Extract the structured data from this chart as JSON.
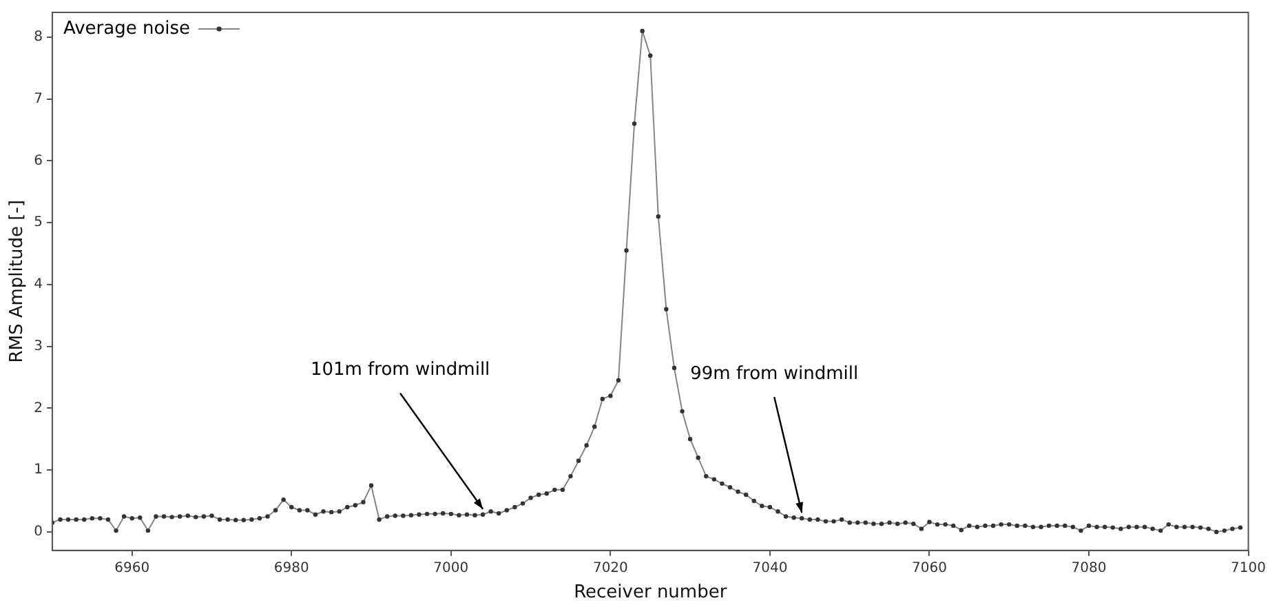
{
  "chart_data": {
    "type": "line",
    "xlabel": "Receiver number",
    "ylabel": "RMS Amplitude [-]",
    "x": [
      6950,
      6951,
      6952,
      6953,
      6954,
      6955,
      6956,
      6957,
      6958,
      6959,
      6960,
      6961,
      6962,
      6963,
      6964,
      6965,
      6966,
      6967,
      6968,
      6969,
      6970,
      6971,
      6972,
      6973,
      6974,
      6975,
      6976,
      6977,
      6978,
      6979,
      6980,
      6981,
      6982,
      6983,
      6984,
      6985,
      6986,
      6987,
      6988,
      6989,
      6990,
      6991,
      6992,
      6993,
      6994,
      6995,
      6996,
      6997,
      6998,
      6999,
      7000,
      7001,
      7002,
      7003,
      7004,
      7005,
      7006,
      7007,
      7008,
      7009,
      7010,
      7011,
      7012,
      7013,
      7014,
      7015,
      7016,
      7017,
      7018,
      7019,
      7020,
      7021,
      7022,
      7023,
      7024,
      7025,
      7026,
      7027,
      7028,
      7029,
      7030,
      7031,
      7032,
      7033,
      7034,
      7035,
      7036,
      7037,
      7038,
      7039,
      7040,
      7041,
      7042,
      7043,
      7044,
      7045,
      7046,
      7047,
      7048,
      7049,
      7050,
      7051,
      7052,
      7053,
      7054,
      7055,
      7056,
      7057,
      7058,
      7059,
      7060,
      7061,
      7062,
      7063,
      7064,
      7065,
      7066,
      7067,
      7068,
      7069,
      7070,
      7071,
      7072,
      7073,
      7074,
      7075,
      7076,
      7077,
      7078,
      7079,
      7080,
      7081,
      7082,
      7083,
      7084,
      7085,
      7086,
      7087,
      7088,
      7089,
      7090,
      7091,
      7092,
      7093,
      7094,
      7095,
      7096,
      7097,
      7098,
      7099
    ],
    "series": [
      {
        "name": "Average noise",
        "color": "#333333",
        "values": [
          0.15,
          0.2,
          0.2,
          0.2,
          0.2,
          0.22,
          0.22,
          0.2,
          0.02,
          0.25,
          0.22,
          0.23,
          0.02,
          0.25,
          0.25,
          0.24,
          0.25,
          0.26,
          0.24,
          0.25,
          0.26,
          0.2,
          0.2,
          0.19,
          0.19,
          0.2,
          0.22,
          0.25,
          0.35,
          0.52,
          0.4,
          0.35,
          0.35,
          0.28,
          0.33,
          0.32,
          0.33,
          0.4,
          0.43,
          0.48,
          0.75,
          0.2,
          0.25,
          0.26,
          0.26,
          0.27,
          0.28,
          0.29,
          0.29,
          0.3,
          0.29,
          0.27,
          0.28,
          0.27,
          0.28,
          0.33,
          0.3,
          0.35,
          0.4,
          0.46,
          0.55,
          0.6,
          0.62,
          0.68,
          0.68,
          0.9,
          1.15,
          1.4,
          1.7,
          2.15,
          2.2,
          2.45,
          4.55,
          6.6,
          8.1,
          7.7,
          5.1,
          3.6,
          2.65,
          1.95,
          1.5,
          1.2,
          0.9,
          0.85,
          0.78,
          0.72,
          0.65,
          0.6,
          0.5,
          0.42,
          0.4,
          0.33,
          0.25,
          0.23,
          0.22,
          0.2,
          0.2,
          0.17,
          0.17,
          0.2,
          0.15,
          0.15,
          0.15,
          0.13,
          0.13,
          0.15,
          0.13,
          0.15,
          0.13,
          0.05,
          0.16,
          0.12,
          0.12,
          0.1,
          0.03,
          0.1,
          0.08,
          0.1,
          0.1,
          0.12,
          0.12,
          0.1,
          0.1,
          0.08,
          0.08,
          0.1,
          0.1,
          0.1,
          0.08,
          0.02,
          0.1,
          0.08,
          0.08,
          0.07,
          0.05,
          0.08,
          0.08,
          0.08,
          0.05,
          0.02,
          0.12,
          0.08,
          0.08,
          0.08,
          0.07,
          0.05,
          0.0,
          0.02,
          0.05,
          0.07
        ]
      }
    ],
    "xlim": [
      6950,
      7100
    ],
    "xticks": [
      6960,
      6980,
      7000,
      7020,
      7040,
      7060,
      7080,
      7100
    ],
    "ylim": [
      -0.3,
      8.4
    ],
    "yticks": [
      0,
      1,
      2,
      3,
      4,
      5,
      6,
      7,
      8
    ],
    "annotations": [
      {
        "text": "101m from windmill",
        "x": 7004,
        "y": 0.28
      },
      {
        "text": "99m from windmill",
        "x": 7044,
        "y": 0.22
      }
    ],
    "legend": "top left",
    "marker": "circle",
    "line_style": "solid",
    "grid": false
  }
}
